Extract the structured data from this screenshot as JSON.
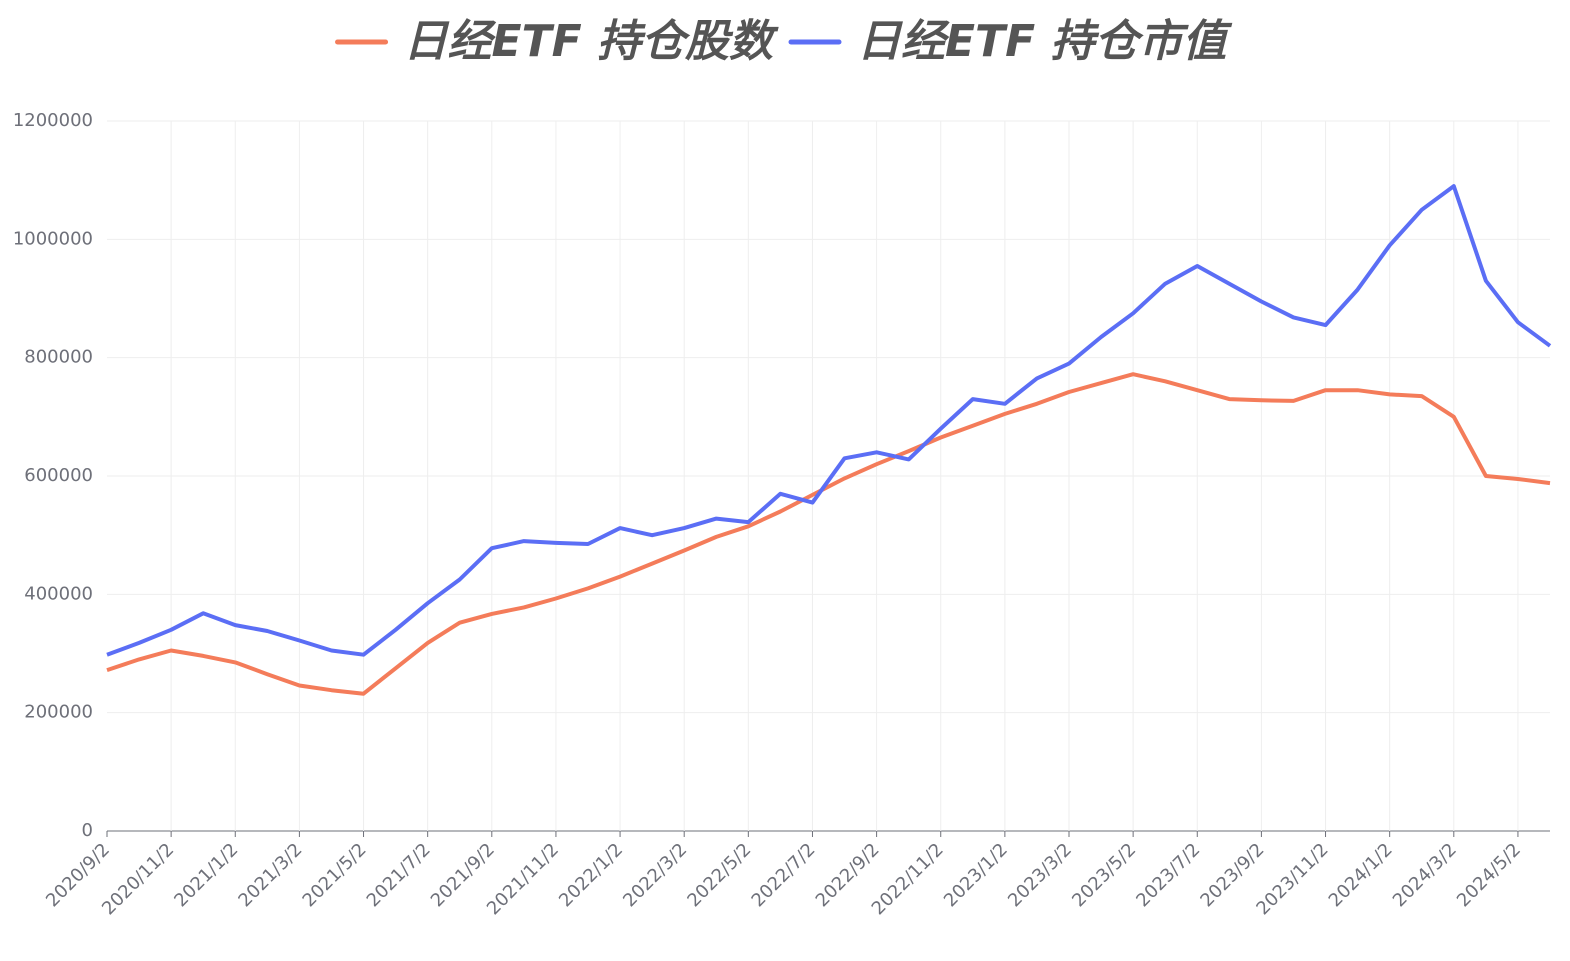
{
  "chart_data": {
    "type": "line",
    "categories": [
      "2020/9/2",
      null,
      "2020/11/2",
      null,
      "2021/1/2",
      null,
      "2021/3/2",
      null,
      "2021/5/2",
      null,
      "2021/7/2",
      null,
      "2021/9/2",
      null,
      "2021/11/2",
      null,
      "2022/1/2",
      null,
      "2022/3/2",
      null,
      "2022/5/2",
      null,
      "2022/7/2",
      null,
      "2022/9/2",
      null,
      "2022/11/2",
      null,
      "2023/1/2",
      null,
      "2023/3/2",
      null,
      "2023/5/2",
      null,
      "2023/7/2",
      null,
      "2023/9/2",
      null,
      "2023/11/2",
      null,
      "2024/1/2",
      null,
      "2024/3/2",
      null,
      "2024/5/2",
      null
    ],
    "series": [
      {
        "name": "日经ETF 持仓股数",
        "color": "#f47c5a",
        "values": [
          272000,
          290000,
          305000,
          296000,
          285000,
          265000,
          246000,
          238000,
          232000,
          275000,
          318000,
          352000,
          367000,
          378000,
          393000,
          410000,
          430000,
          452000,
          474000,
          497000,
          515000,
          540000,
          568000,
          596000,
          620000,
          642000,
          665000,
          685000,
          705000,
          722000,
          742000,
          757000,
          772000,
          760000,
          745000,
          730000,
          728000,
          727000,
          745000,
          745000,
          738000,
          735000,
          700000,
          600000,
          595000,
          588000
        ]
      },
      {
        "name": "日经ETF 持仓市值",
        "color": "#5b6ef5",
        "values": [
          298000,
          318000,
          340000,
          368000,
          348000,
          338000,
          322000,
          305000,
          298000,
          340000,
          385000,
          425000,
          478000,
          490000,
          487000,
          485000,
          512000,
          500000,
          512000,
          528000,
          522000,
          570000,
          555000,
          630000,
          640000,
          628000,
          680000,
          730000,
          722000,
          765000,
          790000,
          835000,
          875000,
          925000,
          955000,
          925000,
          895000,
          868000,
          855000,
          915000,
          990000,
          1050000,
          1090000,
          930000,
          860000,
          820000
        ]
      }
    ],
    "ylim": [
      0,
      1200000
    ],
    "yticks": [
      0,
      200000,
      400000,
      600000,
      800000,
      1000000,
      1200000
    ],
    "grid": true
  }
}
